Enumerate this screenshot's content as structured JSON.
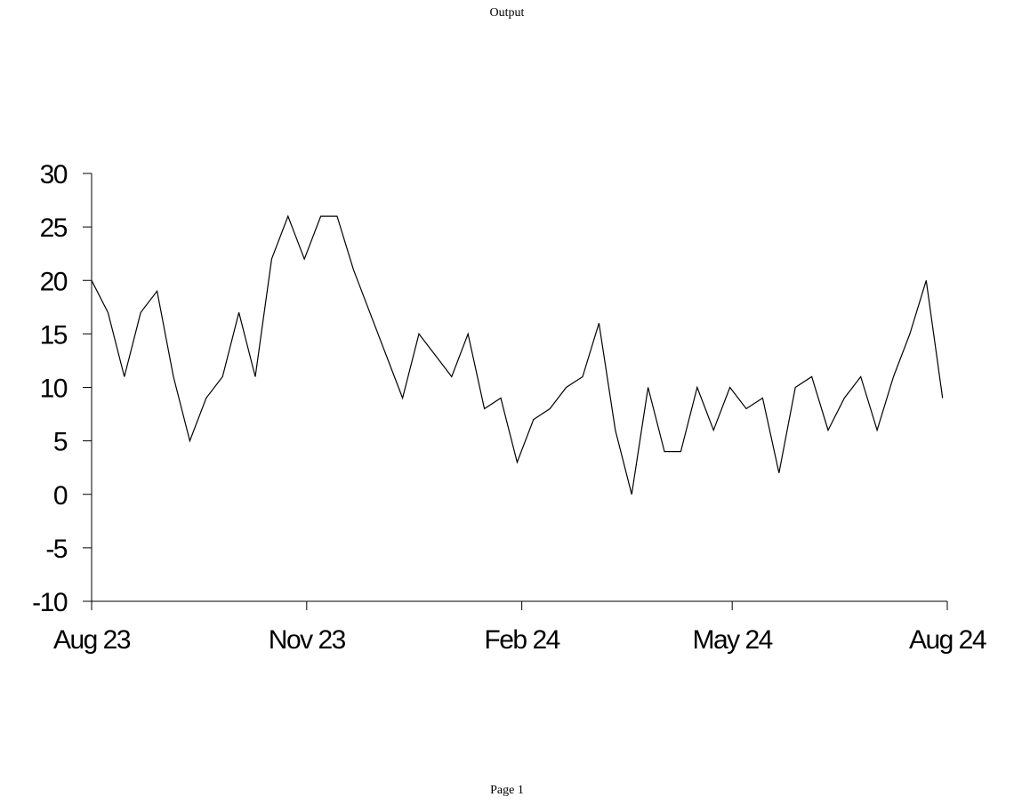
{
  "header": {
    "title": "Output"
  },
  "footer": {
    "page_label": "Page 1"
  },
  "chart_data": {
    "type": "line",
    "title": "",
    "xlabel": "",
    "ylabel": "",
    "ylim": [
      -10,
      30
    ],
    "yticks": [
      "30",
      "25",
      "20",
      "15",
      "10",
      "5",
      "0",
      "-5",
      "-10"
    ],
    "ytick_values": [
      30,
      25,
      20,
      15,
      10,
      5,
      0,
      -5,
      -10
    ],
    "xlim": [
      "2023-08-01",
      "2024-08-01"
    ],
    "xticks": [
      {
        "label": "Aug 23",
        "date": "2023-08-01"
      },
      {
        "label": "Nov 23",
        "date": "2023-11-01"
      },
      {
        "label": "Feb 24",
        "date": "2024-02-01"
      },
      {
        "label": "May 24",
        "date": "2024-05-01"
      },
      {
        "label": "Aug 24",
        "date": "2024-08-01"
      }
    ],
    "grid": false,
    "line_color": "#000000",
    "x": [
      "2023-08-01",
      "2023-08-08",
      "2023-08-15",
      "2023-08-22",
      "2023-08-29",
      "2023-09-05",
      "2023-09-12",
      "2023-09-19",
      "2023-09-26",
      "2023-10-03",
      "2023-10-10",
      "2023-10-17",
      "2023-10-24",
      "2023-10-31",
      "2023-11-07",
      "2023-11-14",
      "2023-11-21",
      "2023-11-28",
      "2023-12-05",
      "2023-12-12",
      "2023-12-19",
      "2023-12-26",
      "2024-01-02",
      "2024-01-09",
      "2024-01-16",
      "2024-01-23",
      "2024-01-30",
      "2024-02-06",
      "2024-02-13",
      "2024-02-20",
      "2024-02-27",
      "2024-03-05",
      "2024-03-12",
      "2024-03-19",
      "2024-03-26",
      "2024-04-02",
      "2024-04-09",
      "2024-04-16",
      "2024-04-23",
      "2024-04-30",
      "2024-05-07",
      "2024-05-14",
      "2024-05-21",
      "2024-05-28",
      "2024-06-04",
      "2024-06-11",
      "2024-06-18",
      "2024-06-25",
      "2024-07-02",
      "2024-07-09",
      "2024-07-16",
      "2024-07-23",
      "2024-07-30"
    ],
    "values": [
      20,
      17,
      11,
      17,
      19,
      11,
      5,
      9,
      11,
      17,
      11,
      22,
      26,
      22,
      26,
      26,
      21,
      17,
      13,
      9,
      15,
      13,
      11,
      15,
      8,
      9,
      3,
      7,
      8,
      10,
      11,
      16,
      6,
      0,
      10,
      4,
      4,
      10,
      6,
      10,
      8,
      9,
      2,
      10,
      11,
      6,
      9,
      11,
      6,
      11,
      15,
      20,
      9
    ]
  }
}
